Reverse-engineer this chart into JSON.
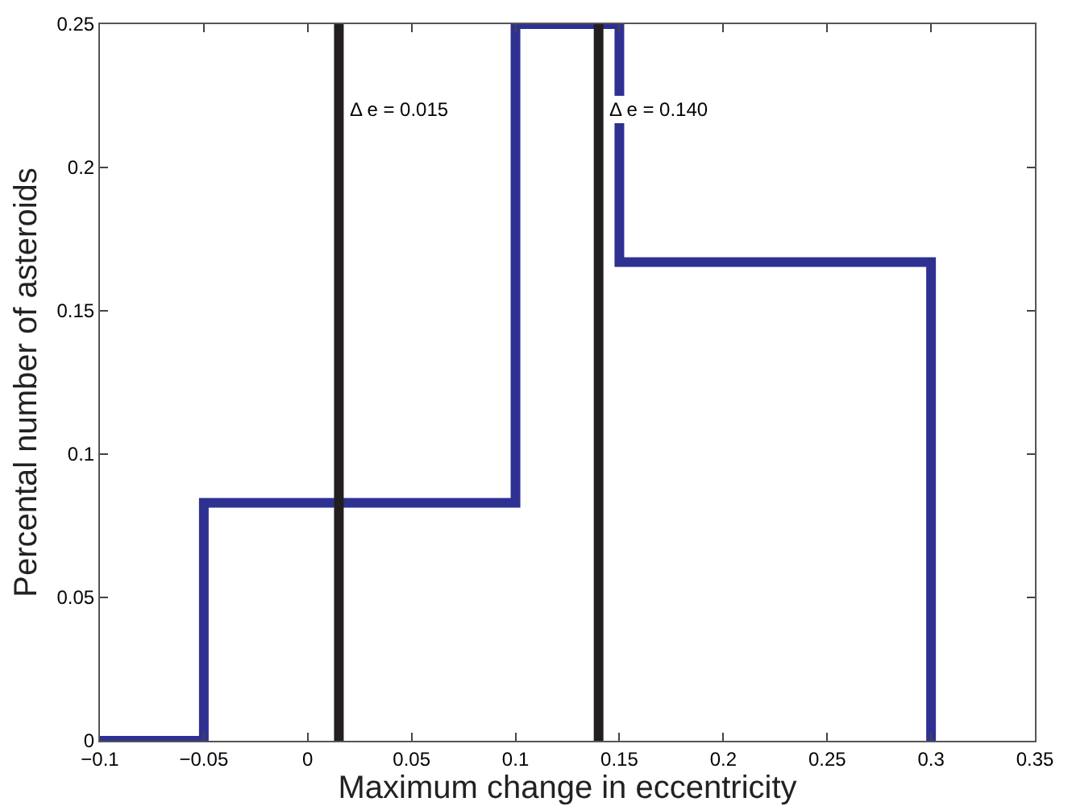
{
  "chart_data": {
    "type": "histogram",
    "xlabel": "Maximum change in eccentricity",
    "ylabel": "Percental number of asteroids",
    "bins": [
      -0.1,
      -0.05,
      0.1,
      0.15,
      0.3
    ],
    "values": [
      0,
      0.083,
      0.25,
      0.167
    ],
    "color": "#2e3192",
    "xlim": [
      -0.1,
      0.35
    ],
    "xticks": [
      {
        "value": -0.1,
        "label": "−0.1"
      },
      {
        "value": -0.05,
        "label": "−0.05"
      },
      0,
      0.05,
      0.1,
      0.15,
      0.2,
      0.25,
      0.3,
      0.35
    ],
    "ylim": [
      0,
      0.25
    ],
    "yticks": [
      0,
      0.05,
      0.1,
      0.15,
      0.2,
      0.25
    ],
    "ref_lines": [
      {
        "axis": "x",
        "value": 0.015,
        "label": "Δ e = 0.015",
        "color": "#231f20"
      },
      {
        "axis": "x",
        "value": 0.14,
        "label": "Δ e = 0.140",
        "color": "#231f20"
      }
    ]
  }
}
